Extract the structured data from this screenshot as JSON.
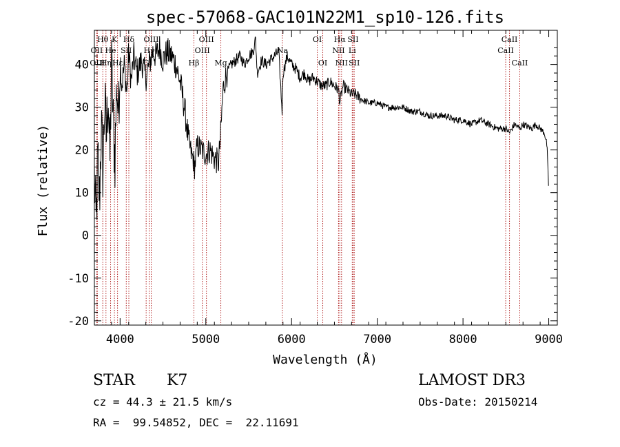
{
  "chart_data": {
    "type": "line",
    "title": "spec-57068-GAC101N22M1_sp10-126.fits",
    "xlabel": "Wavelength (Å)",
    "ylabel": "Flux (relative)",
    "xlim": [
      3700,
      9100
    ],
    "ylim": [
      -21,
      48
    ],
    "xticks": [
      4000,
      5000,
      6000,
      7000,
      8000,
      9000
    ],
    "yticks": [
      -20,
      -10,
      0,
      10,
      20,
      30,
      40
    ],
    "grid": false,
    "series": [
      {
        "name": "spectrum",
        "x": [
          3700,
          3720,
          3740,
          3760,
          3780,
          3800,
          3820,
          3840,
          3860,
          3880,
          3900,
          3920,
          3940,
          3960,
          3980,
          4000,
          4020,
          4050,
          4080,
          4100,
          4130,
          4160,
          4200,
          4250,
          4300,
          4340,
          4380,
          4420,
          4460,
          4500,
          4550,
          4600,
          4650,
          4700,
          4750,
          4800,
          4830,
          4850,
          4870,
          4900,
          4950,
          5000,
          5050,
          5100,
          5150,
          5180,
          5200,
          5230,
          5270,
          5300,
          5350,
          5400,
          5450,
          5500,
          5550,
          5580,
          5600,
          5650,
          5700,
          5750,
          5800,
          5850,
          5890,
          5900,
          5950,
          6000,
          6050,
          6100,
          6150,
          6200,
          6250,
          6300,
          6350,
          6400,
          6450,
          6500,
          6550,
          6563,
          6600,
          6650,
          6700,
          6750,
          6800,
          6900,
          7000,
          7100,
          7200,
          7300,
          7400,
          7500,
          7600,
          7700,
          7800,
          7900,
          8000,
          8100,
          8200,
          8300,
          8400,
          8500,
          8542,
          8600,
          8662,
          8700,
          8800,
          8850,
          8900,
          8950,
          8980,
          9000
        ],
        "y": [
          14,
          2,
          18,
          8,
          26,
          15,
          32,
          22,
          35,
          16,
          40,
          26,
          18,
          36,
          28,
          42,
          35,
          40,
          33,
          43,
          36,
          42,
          38,
          41,
          37,
          40,
          43,
          42,
          44,
          41,
          43,
          42,
          40,
          36,
          30,
          22,
          19,
          18,
          16,
          21,
          20,
          19,
          20,
          18,
          17,
          26,
          34,
          37,
          39,
          40,
          41,
          42,
          40,
          42,
          43,
          46,
          38,
          41,
          40,
          41,
          42,
          43,
          29,
          38,
          42,
          40,
          39,
          37,
          38,
          36,
          37,
          36,
          35,
          35,
          36,
          35,
          34,
          31,
          35,
          34,
          33,
          33,
          32,
          31,
          31,
          30,
          30,
          30,
          29,
          29,
          28,
          28,
          28,
          27,
          27,
          26,
          27,
          26,
          25,
          25,
          24,
          26,
          25,
          26,
          25,
          26,
          25,
          24,
          21,
          10
        ]
      }
    ],
    "lines": [
      {
        "label": "Hθ",
        "x": 3798,
        "row": 1
      },
      {
        "label": "OII",
        "x": 3727,
        "row": 2
      },
      {
        "label": "OIII",
        "x": 3735,
        "row": 3
      },
      {
        "label": "Hη",
        "x": 3835,
        "row": 3
      },
      {
        "label": "K",
        "x": 3934,
        "row": 1
      },
      {
        "label": "He",
        "x": 3889,
        "row": 2
      },
      {
        "label": "Hε",
        "x": 3970,
        "row": 3
      },
      {
        "label": "SII",
        "x": 4072,
        "row": 2
      },
      {
        "label": "Hδ",
        "x": 4102,
        "row": 1
      },
      {
        "label": "OIII",
        "x": 4363,
        "row": 1
      },
      {
        "label": "Hγ",
        "x": 4340,
        "row": 2
      },
      {
        "label": "G",
        "x": 4304,
        "row": 3
      },
      {
        "label": "Hβ",
        "x": 4861,
        "row": 3
      },
      {
        "label": "OIII",
        "x": 4959,
        "row": 2
      },
      {
        "label": "OIII",
        "x": 5007,
        "row": 1
      },
      {
        "label": "Mg",
        "x": 5175,
        "row": 3
      },
      {
        "label": "Na",
        "x": 5893,
        "row": 2
      },
      {
        "label": "OI",
        "x": 6300,
        "row": 1
      },
      {
        "label": "OI",
        "x": 6364,
        "row": 3
      },
      {
        "label": "Hα",
        "x": 6563,
        "row": 1
      },
      {
        "label": "NII",
        "x": 6548,
        "row": 2
      },
      {
        "label": "NII",
        "x": 6583,
        "row": 3
      },
      {
        "label": "SII",
        "x": 6717,
        "row": 1
      },
      {
        "label": "Li",
        "x": 6708,
        "row": 2
      },
      {
        "label": "SII",
        "x": 6731,
        "row": 3
      },
      {
        "label": "CaII",
        "x": 8542,
        "row": 1
      },
      {
        "label": "CaII",
        "x": 8498,
        "row": 2
      },
      {
        "label": "CaII",
        "x": 8662,
        "row": 3
      }
    ]
  },
  "info": {
    "class_label": "STAR",
    "subclass": "K7",
    "survey": "LAMOST DR3",
    "cz": "cz = 44.3 ± 21.5 km/s",
    "obs_date": "Obs-Date: 20150214",
    "coords": "RA =  99.54852, DEC =  22.11691"
  },
  "colors": {
    "line_marker": "#b22222",
    "spectrum": "#000000",
    "axis": "#000000"
  }
}
